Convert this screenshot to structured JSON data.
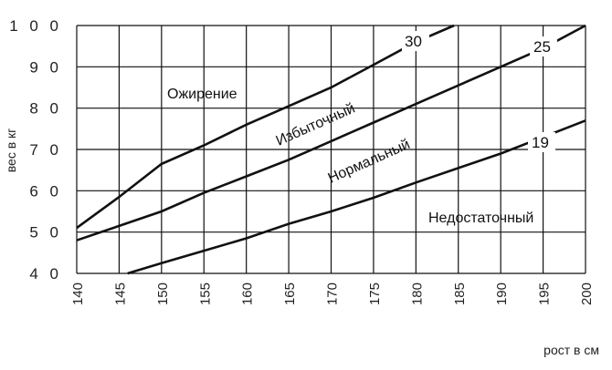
{
  "chart_data": {
    "type": "line",
    "xlabel": "рост в см",
    "ylabel": "вес в кг",
    "xlim": [
      140,
      200
    ],
    "ylim": [
      40,
      100
    ],
    "x_ticks": [
      "140",
      "145",
      "150",
      "155",
      "160",
      "165",
      "170",
      "175",
      "180",
      "185",
      "190",
      "195",
      "200"
    ],
    "y_ticks": [
      "4 0",
      "5 0",
      "6 0",
      "7 0",
      "8 0",
      "9 0",
      "1 0 0"
    ],
    "grid": true,
    "series": [
      {
        "name": "30",
        "points": [
          [
            140,
            51
          ],
          [
            145,
            58.5
          ],
          [
            150,
            66.5
          ],
          [
            155,
            71
          ],
          [
            160,
            76
          ],
          [
            165,
            80.5
          ],
          [
            170,
            85
          ],
          [
            175,
            90.5
          ],
          [
            180,
            96
          ],
          [
            184.5,
            100
          ]
        ]
      },
      {
        "name": "25",
        "points": [
          [
            140,
            48
          ],
          [
            145,
            51.5
          ],
          [
            150,
            55
          ],
          [
            155,
            59.5
          ],
          [
            160,
            63.5
          ],
          [
            165,
            67.5
          ],
          [
            170,
            72
          ],
          [
            175,
            76.5
          ],
          [
            180,
            81
          ],
          [
            185,
            85.5
          ],
          [
            190,
            90
          ],
          [
            195,
            94.5
          ],
          [
            200,
            100
          ]
        ]
      },
      {
        "name": "19",
        "points": [
          [
            146,
            40
          ],
          [
            150,
            42.5
          ],
          [
            155,
            45.5
          ],
          [
            160,
            48.5
          ],
          [
            165,
            52
          ],
          [
            170,
            55
          ],
          [
            175,
            58.3
          ],
          [
            180,
            62
          ],
          [
            185,
            65.5
          ],
          [
            190,
            69
          ],
          [
            195,
            73
          ],
          [
            200,
            77
          ]
        ]
      }
    ],
    "region_labels": [
      "Ожирение",
      "Избыточный",
      "Нормальный",
      "Недостаточный"
    ]
  }
}
